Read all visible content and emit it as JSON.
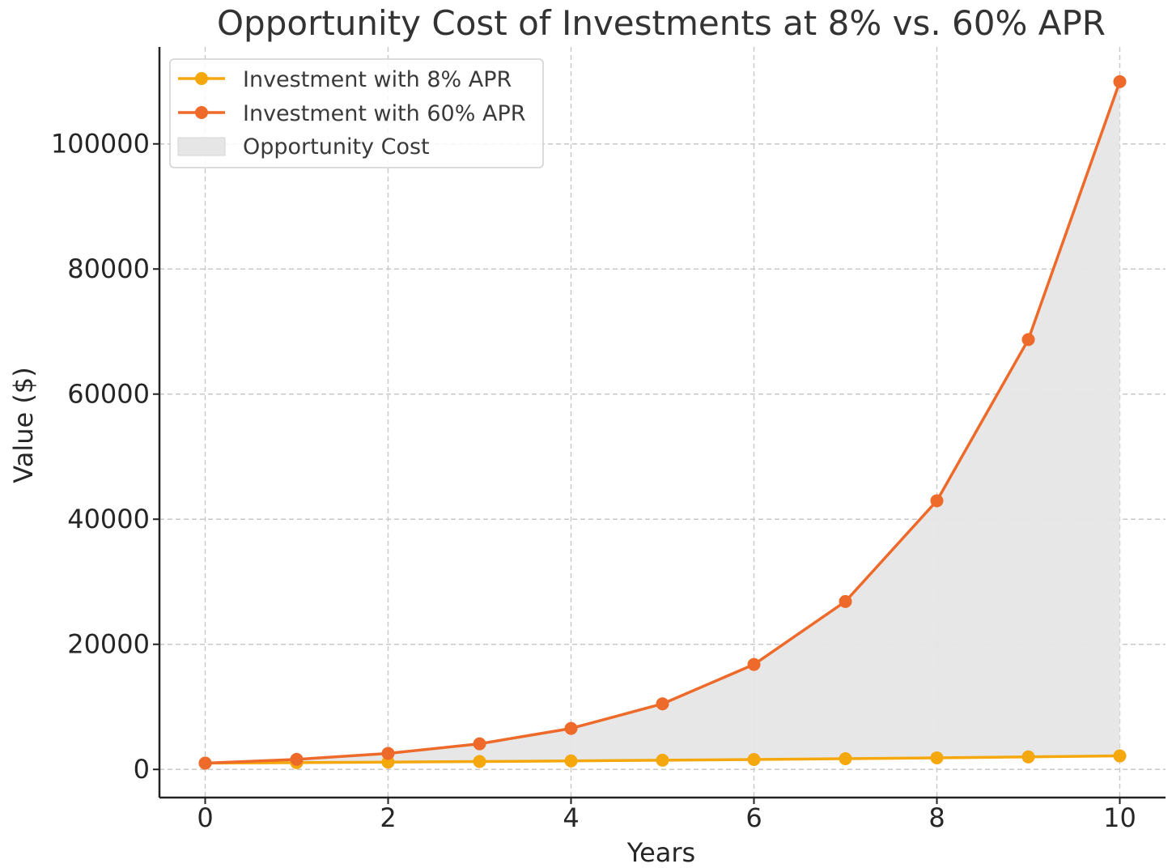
{
  "chart_data": {
    "type": "line",
    "title": "Opportunity Cost of Investments at 8% vs. 60% APR",
    "xlabel": "Years",
    "ylabel": "Value ($)",
    "x": [
      0,
      1,
      2,
      3,
      4,
      5,
      6,
      7,
      8,
      9,
      10
    ],
    "xlim": [
      -0.5,
      10.5
    ],
    "ylim": [
      -4500,
      115500
    ],
    "x_ticks": [
      "0",
      "2",
      "4",
      "6",
      "8",
      "10"
    ],
    "y_ticks": [
      "0",
      "20000",
      "40000",
      "60000",
      "80000",
      "100000"
    ],
    "grid": true,
    "legend_position": "top-left",
    "series": [
      {
        "name": "Investment with 8% APR",
        "color": "#f5a70e",
        "values": [
          1000,
          1080,
          1166,
          1260,
          1360,
          1469,
          1587,
          1714,
          1851,
          1999,
          2159
        ]
      },
      {
        "name": "Investment with 60% APR",
        "color": "#ee6a2a",
        "values": [
          1000,
          1600,
          2560,
          4096,
          6554,
          10486,
          16777,
          26844,
          42950,
          68719,
          109951
        ]
      }
    ],
    "fill_between": {
      "name": "Opportunity Cost",
      "color": "#e6e6e6"
    }
  }
}
